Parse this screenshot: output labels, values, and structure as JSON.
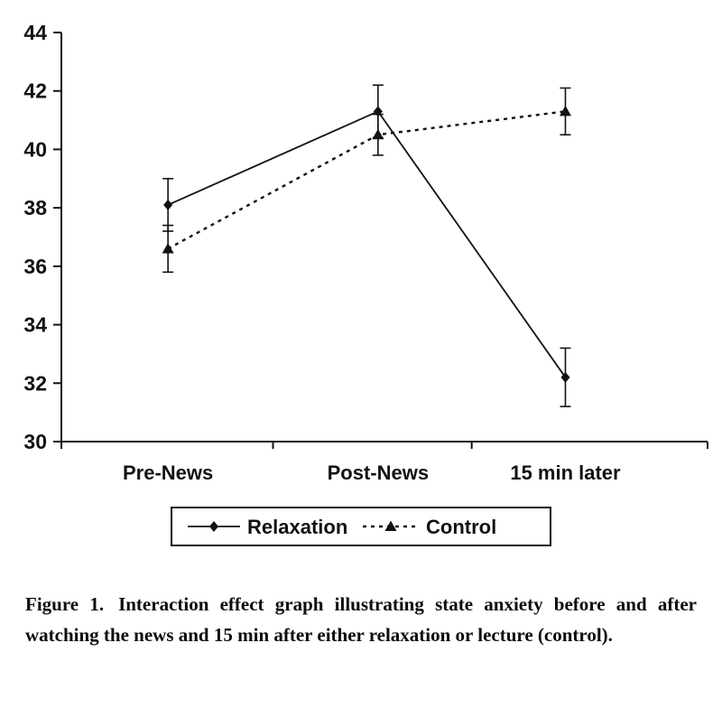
{
  "figure": {
    "caption_label": "Figure 1.",
    "caption_text": "Interaction effect graph illustrating state anxiety before and after watching the news and 15 min after either relaxation or lecture (control)."
  },
  "chart_data": {
    "type": "line",
    "title": "",
    "xlabel": "",
    "ylabel": "",
    "categories": [
      "Pre-News",
      "Post-News",
      "15 min later"
    ],
    "series": [
      {
        "name": "Relaxation",
        "marker": "diamond",
        "line_style": "solid",
        "values": [
          38.1,
          41.3,
          32.2
        ],
        "errors": [
          0.9,
          0.9,
          1.0
        ]
      },
      {
        "name": "Control",
        "marker": "triangle",
        "line_style": "dashed",
        "values": [
          36.6,
          40.5,
          41.3
        ],
        "errors": [
          0.8,
          0.7,
          0.8
        ]
      }
    ],
    "ylim": [
      30,
      44
    ],
    "ytick_step": 2,
    "yticks": [
      30,
      32,
      34,
      36,
      38,
      40,
      42,
      44
    ],
    "grid": false,
    "error_bars": true,
    "legend_position": "bottom",
    "color": "#121212"
  }
}
